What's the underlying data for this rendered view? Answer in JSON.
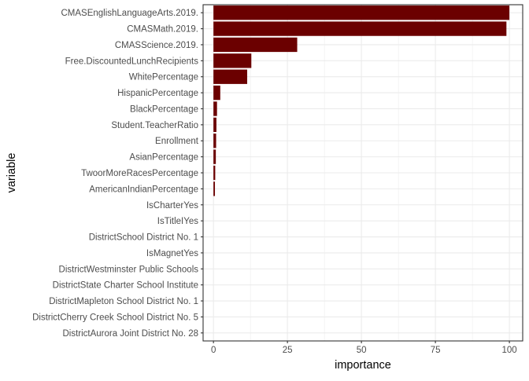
{
  "chart_data": {
    "type": "bar",
    "orientation": "horizontal",
    "title": "",
    "xlabel": "importance",
    "ylabel": "variable",
    "xlim": [
      -3.5,
      104.5
    ],
    "x_ticks": [
      0,
      25,
      50,
      75,
      100
    ],
    "grid": true,
    "bar_color": "#6b0000",
    "categories": [
      "CMASEnglishLanguageArts.2019.",
      "CMASMath.2019.",
      "CMASScience.2019.",
      "Free.DiscountedLunchRecipients",
      "WhitePercentage",
      "HispanicPercentage",
      "BlackPercentage",
      "Student.TeacherRatio",
      "Enrollment",
      "AsianPercentage",
      "TwoorMoreRacesPercentage",
      "AmericanIndianPercentage",
      "IsCharterYes",
      "IsTitleIYes",
      "DistrictSchool District No. 1",
      "IsMagnetYes",
      "DistrictWestminster Public Schools",
      "DistrictState Charter School Institute",
      "DistrictMapleton School District No. 1",
      "DistrictCherry Creek School District No. 5",
      "DistrictAurora Joint District No. 28"
    ],
    "values": [
      100,
      99,
      28.3,
      12.8,
      11.4,
      2.3,
      1.2,
      1.0,
      0.9,
      0.8,
      0.6,
      0.5,
      0,
      0,
      0,
      0,
      0,
      0,
      0,
      0,
      0
    ]
  }
}
